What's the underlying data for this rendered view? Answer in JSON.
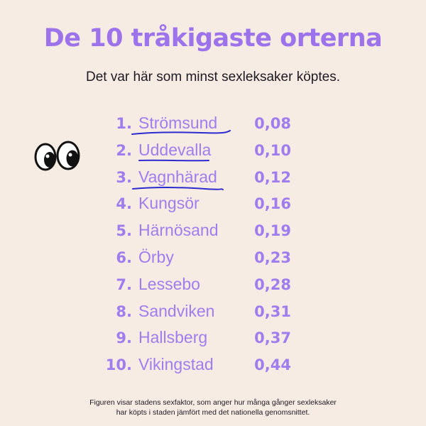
{
  "title": "De 10 tråkigaste orterna",
  "subtitle": "Det var här som minst sexleksaker köptes.",
  "accent_color": "#9D73EC",
  "underline_color": "#2B2BD0",
  "decoration_icon": "cartoon-eyes",
  "ranking": [
    {
      "rank": "1.",
      "name": "Strömsund",
      "value": "0,08",
      "underlined": true
    },
    {
      "rank": "2.",
      "name": "Uddevalla",
      "value": "0,10",
      "underlined": true
    },
    {
      "rank": "3.",
      "name": "Vagnhärad",
      "value": "0,12",
      "underlined": true
    },
    {
      "rank": "4.",
      "name": "Kungsör",
      "value": "0,16",
      "underlined": false
    },
    {
      "rank": "5.",
      "name": "Härnösand",
      "value": "0,19",
      "underlined": false
    },
    {
      "rank": "6.",
      "name": "Örby",
      "value": "0,23",
      "underlined": false
    },
    {
      "rank": "7.",
      "name": "Lessebo",
      "value": "0,28",
      "underlined": false
    },
    {
      "rank": "8.",
      "name": "Sandviken",
      "value": "0,31",
      "underlined": false
    },
    {
      "rank": "9.",
      "name": "Hallsberg",
      "value": "0,37",
      "underlined": false
    },
    {
      "rank": "10.",
      "name": "Vikingstad",
      "value": "0,44",
      "underlined": false
    }
  ],
  "footnote": {
    "line1": "Figuren visar stadens sexfaktor, som anger hur många gånger sexleksaker",
    "line2": "har köpts i staden jämfört med det nationella genomsnittet."
  }
}
